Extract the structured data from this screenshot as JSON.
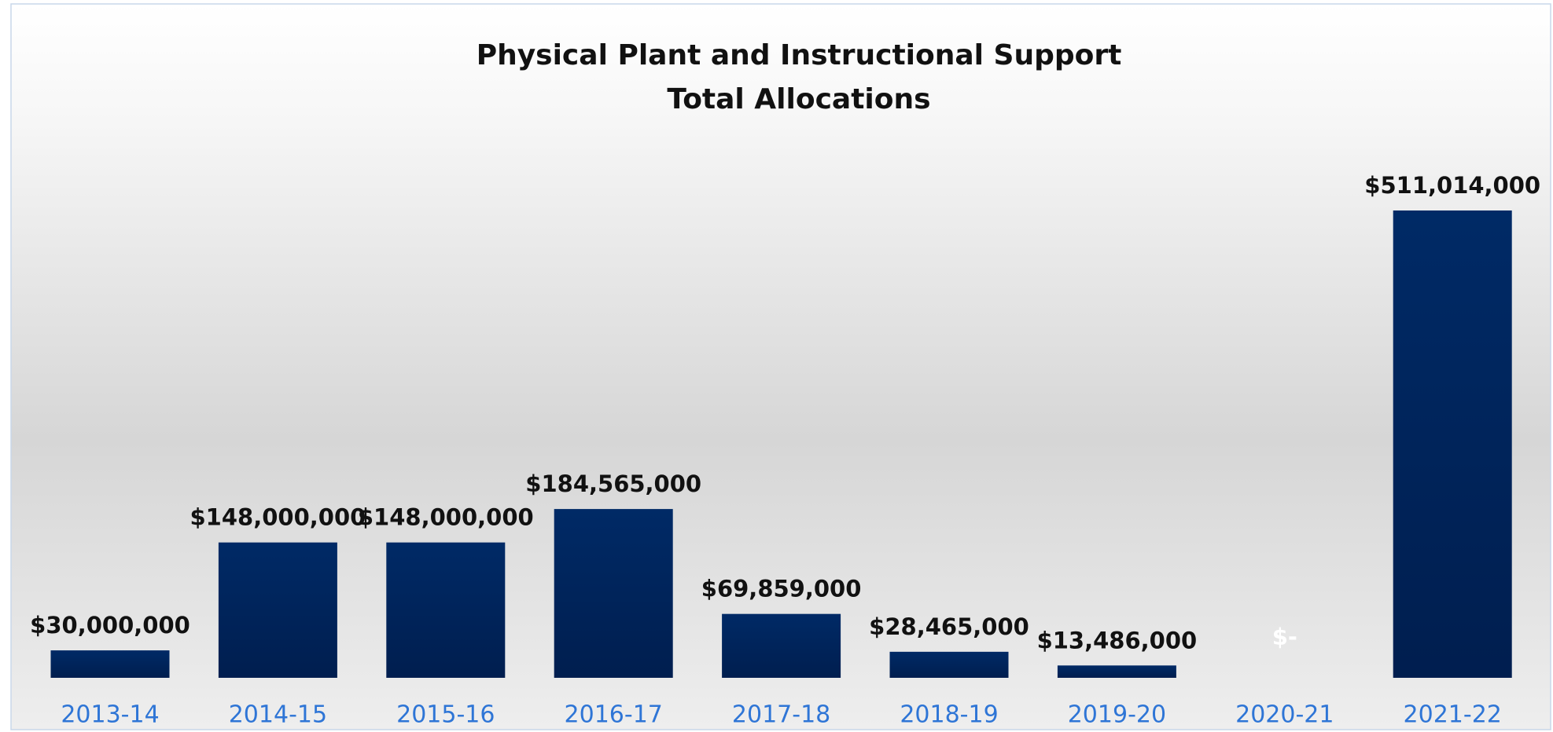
{
  "chart_data": {
    "type": "bar",
    "title": "Physical Plant and Instructional Support",
    "subtitle": "Total Allocations",
    "categories": [
      "2013-14",
      "2014-15",
      "2015-16",
      "2016-17",
      "2017-18",
      "2018-19",
      "2019-20",
      "2020-21",
      "2021-22"
    ],
    "values": [
      30000000,
      148000000,
      148000000,
      184565000,
      69859000,
      28465000,
      13486000,
      0,
      511014000
    ],
    "value_labels": [
      "$30,000,000",
      "$148,000,000",
      "$148,000,000",
      "$184,565,000",
      "$69,859,000",
      "$28,465,000",
      "$13,486,000",
      "$-",
      "$511,014,000"
    ],
    "color": "#002a66"
  }
}
